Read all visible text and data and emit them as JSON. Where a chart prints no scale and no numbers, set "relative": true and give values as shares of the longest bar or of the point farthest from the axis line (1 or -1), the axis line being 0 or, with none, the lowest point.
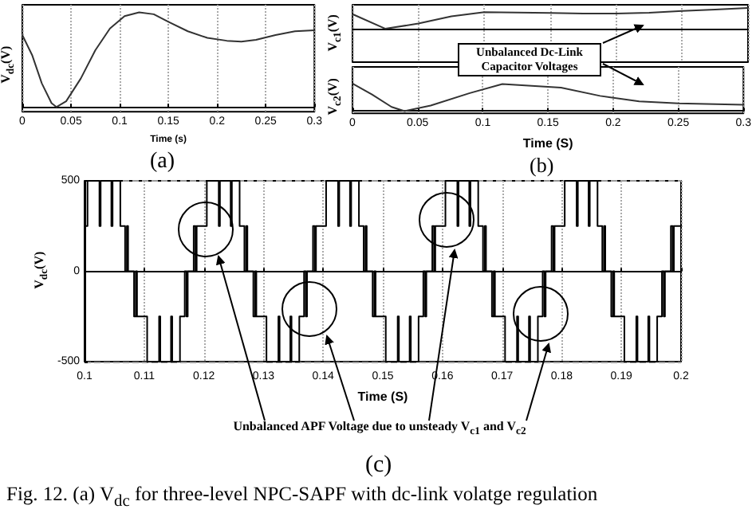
{
  "chart_data": [
    {
      "type": "line",
      "xlabel": "Time (s)",
      "ylabel": "V$_{dc}$(V)",
      "relative": true,
      "xlim": [
        0,
        0.3
      ],
      "xticks": [
        0,
        0.05,
        0.1,
        0.15,
        0.2,
        0.25,
        0.3
      ],
      "grid": "x",
      "tick_labels": "x",
      "annotations": [
        "(a)"
      ],
      "x": [
        0,
        0.01,
        0.02,
        0.03,
        0.035,
        0.045,
        0.06,
        0.075,
        0.09,
        0.105,
        0.12,
        0.135,
        0.15,
        0.17,
        0.19,
        0.21,
        0.225,
        0.24,
        0.26,
        0.28,
        0.3
      ],
      "series": [
        {
          "color": "#333333",
          "values": [
            0.76,
            0.55,
            0.25,
            0.04,
            0,
            0.06,
            0.3,
            0.6,
            0.83,
            0.96,
            1,
            0.98,
            0.9,
            0.8,
            0.73,
            0.7,
            0.69,
            0.71,
            0.76,
            0.8,
            0.81
          ]
        }
      ]
    },
    {
      "type": "line",
      "ylabel": "V$_{c1}$(V)",
      "relative": true,
      "categories": [
        null,
        null,
        null,
        null,
        null,
        null,
        null,
        null,
        null,
        null,
        null,
        null,
        null
      ],
      "grid": "x",
      "tick_labels": false,
      "annotations": [
        "Unbalanced Dc-Link Capacitor Voltages"
      ],
      "series": [
        {
          "color": "#333333",
          "values": [
            0.7,
            0,
            0.25,
            0.6,
            0.8,
            0.78,
            0.76,
            0.73,
            0.73,
            0.77,
            0.85,
            0.92,
            1
          ]
        }
      ]
    },
    {
      "type": "line",
      "xlabel": "Time (S)",
      "ylabel": "V$_{c2}$(V)",
      "relative": true,
      "xlim": [
        0,
        0.3
      ],
      "xticks": [
        0,
        0.05,
        0.1,
        0.15,
        0.2,
        0.25,
        0.3
      ],
      "grid": "x",
      "tick_labels": "x",
      "annotations": [
        "(b)"
      ],
      "x": [
        0,
        0.015,
        0.03,
        0.04,
        0.06,
        0.09,
        0.115,
        0.16,
        0.19,
        0.22,
        0.25,
        0.3
      ],
      "series": [
        {
          "color": "#333333",
          "values": [
            1,
            0.6,
            0.15,
            0,
            0.2,
            0.65,
            0.98,
            0.85,
            0.55,
            0.35,
            0.28,
            0.23
          ]
        }
      ]
    },
    {
      "type": "step",
      "xlabel": "Time (S)",
      "ylabel": "V$_{dc}$(V)",
      "xlim": [
        0.1,
        0.2
      ],
      "xticks": [
        0.1,
        0.11,
        0.12,
        0.13,
        0.14,
        0.15,
        0.16,
        0.17,
        0.18,
        0.19,
        0.2
      ],
      "ylim": [
        -500,
        500
      ],
      "yticks": [
        -500,
        0,
        500
      ],
      "grid": true,
      "annotations": [
        "Unbalanced APF Voltage due to unsteady V$_{c1}$ and V$_{c2}$",
        "(c)",
        "Fig. 12. (a) V$_{dc}$ for three-level NPC-SAPF with dc-link volatge regulation"
      ],
      "x": [
        0.1,
        0.1005,
        0.1025,
        0.1027,
        0.1045,
        0.1047,
        0.106,
        0.1068,
        0.1071,
        0.1073,
        0.1083,
        0.1086,
        0.1088,
        0.1105,
        0.1125,
        0.1127,
        0.1145,
        0.1147,
        0.116,
        0.1168,
        0.1171,
        0.1173,
        0.1183,
        0.1186,
        0.1188,
        0.12,
        0.1205,
        0.1225,
        0.1227,
        0.1245,
        0.1247,
        0.126,
        0.1268,
        0.1271,
        0.1273,
        0.1283,
        0.1286,
        0.1288,
        0.1305,
        0.1325,
        0.1327,
        0.1345,
        0.1347,
        0.136,
        0.1368,
        0.1371,
        0.1373,
        0.1383,
        0.1386,
        0.1388,
        0.14,
        0.1405,
        0.1425,
        0.1427,
        0.1445,
        0.1447,
        0.146,
        0.1468,
        0.1471,
        0.1473,
        0.1483,
        0.1486,
        0.1488,
        0.1505,
        0.1525,
        0.1527,
        0.1545,
        0.1547,
        0.156,
        0.1568,
        0.1571,
        0.1573,
        0.1583,
        0.1586,
        0.1588,
        0.16,
        0.1605,
        0.1625,
        0.1627,
        0.1645,
        0.1647,
        0.166,
        0.1668,
        0.1671,
        0.1673,
        0.1683,
        0.1686,
        0.1688,
        0.1705,
        0.1725,
        0.1727,
        0.1745,
        0.1747,
        0.176,
        0.1768,
        0.1771,
        0.1773,
        0.1783,
        0.1786,
        0.1788,
        0.18,
        0.1805,
        0.1825,
        0.1827,
        0.1845,
        0.1847,
        0.186,
        0.1868,
        0.1871,
        0.1873,
        0.1883,
        0.1886,
        0.1888,
        0.1905,
        0.1925,
        0.1927,
        0.1945,
        0.1947,
        0.196,
        0.1968,
        0.1971,
        0.1973,
        0.1983,
        0.1986,
        0.1988,
        0.2
      ],
      "series": [
        {
          "color": "#000000",
          "values": [
            250,
            500,
            250,
            500,
            250,
            500,
            250,
            0,
            250,
            0,
            -250,
            0,
            -250,
            -500,
            -250,
            -500,
            -250,
            -500,
            -250,
            0,
            -250,
            0,
            250,
            0,
            250,
            250,
            500,
            250,
            500,
            250,
            500,
            250,
            0,
            250,
            0,
            -250,
            0,
            -250,
            -500,
            -250,
            -500,
            -250,
            -500,
            -250,
            0,
            -250,
            0,
            250,
            0,
            250,
            250,
            500,
            250,
            500,
            250,
            500,
            250,
            0,
            250,
            0,
            -250,
            0,
            -250,
            -500,
            -250,
            -500,
            -250,
            -500,
            -250,
            0,
            -250,
            0,
            250,
            0,
            250,
            250,
            500,
            250,
            500,
            250,
            500,
            250,
            0,
            250,
            0,
            -250,
            0,
            -250,
            -500,
            -250,
            -500,
            -250,
            -500,
            -250,
            0,
            -250,
            0,
            250,
            0,
            250,
            250,
            500,
            250,
            500,
            250,
            500,
            250,
            0,
            250,
            0,
            -250,
            0,
            -250,
            -500,
            -250,
            -500,
            -250,
            -500,
            -250,
            0,
            -250,
            0,
            250,
            0,
            250,
            250
          ]
        }
      ]
    }
  ]
}
